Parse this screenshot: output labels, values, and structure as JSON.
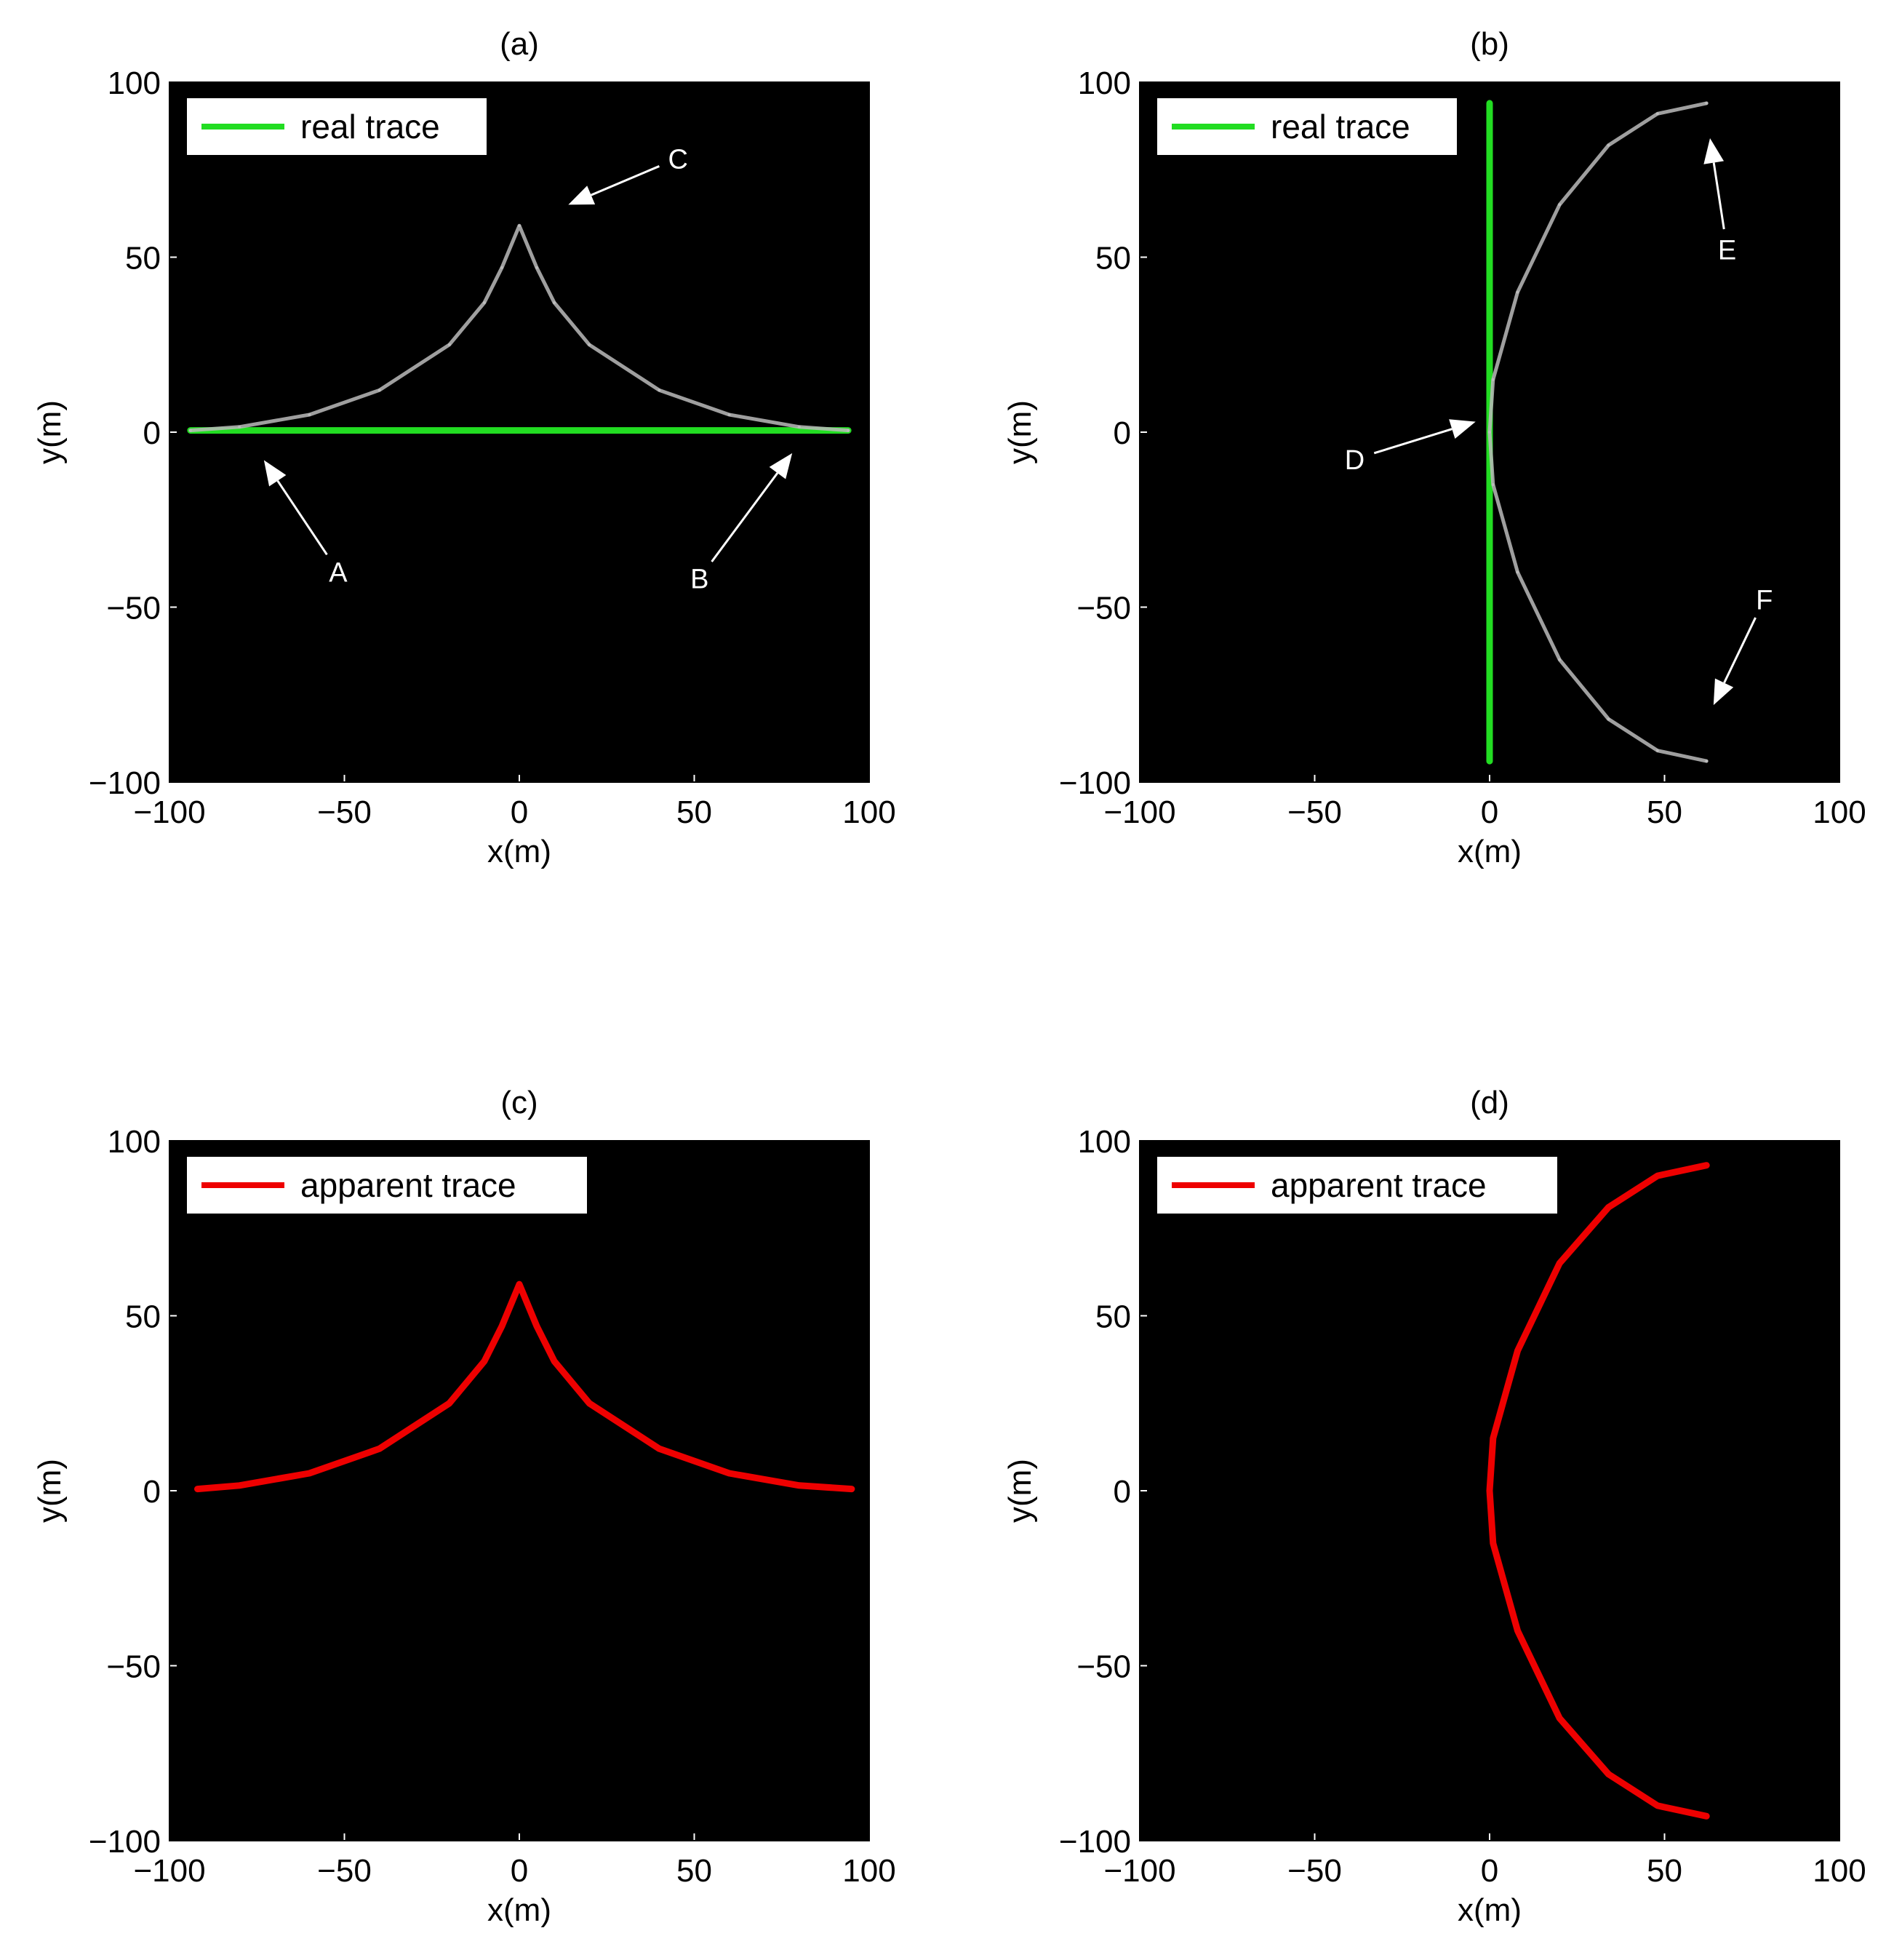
{
  "figure": {
    "panels": [
      {
        "id": "a",
        "title": "(a)",
        "xlabel": "x(m)",
        "ylabel": "y(m)",
        "xlim": [
          -100,
          100
        ],
        "ylim": [
          -100,
          100
        ],
        "xticks": [
          "−100",
          "−50",
          "0",
          "50",
          "100"
        ],
        "yticks": [
          "100",
          "50",
          "0",
          "−50",
          "−100"
        ],
        "background": "#000000",
        "legend": {
          "label": "real trace",
          "color": "#22dd22",
          "placement": "top-left"
        },
        "annotations": [
          {
            "label": "A",
            "from": [
              -55,
              -35
            ],
            "to": [
              -73,
              -8
            ]
          },
          {
            "label": "B",
            "from": [
              55,
              -37
            ],
            "to": [
              78,
              -6
            ]
          },
          {
            "label": "C",
            "from": [
              40,
              76
            ],
            "to": [
              14,
              65
            ]
          }
        ]
      },
      {
        "id": "b",
        "title": "(b)",
        "xlabel": "x(m)",
        "ylabel": "y(m)",
        "xlim": [
          -100,
          100
        ],
        "ylim": [
          -100,
          100
        ],
        "xticks": [
          "−100",
          "−50",
          "0",
          "50",
          "100"
        ],
        "yticks": [
          "100",
          "50",
          "0",
          "−50",
          "−100"
        ],
        "background": "#000000",
        "legend": {
          "label": "real trace",
          "color": "#22dd22",
          "placement": "top-left"
        },
        "annotations": [
          {
            "label": "D",
            "from": [
              -33,
              -6
            ],
            "to": [
              -4,
              3
            ]
          },
          {
            "label": "E",
            "from": [
              67,
              58
            ],
            "to": [
              63,
              84
            ]
          },
          {
            "label": "F",
            "from": [
              76,
              -53
            ],
            "to": [
              64,
              -78
            ]
          }
        ]
      },
      {
        "id": "c",
        "title": "(c)",
        "xlabel": "x(m)",
        "ylabel": "y(m)",
        "xlim": [
          -100,
          100
        ],
        "ylim": [
          -100,
          100
        ],
        "xticks": [
          "−100",
          "−50",
          "0",
          "50",
          "100"
        ],
        "yticks": [
          "100",
          "50",
          "0",
          "−50",
          "−100"
        ],
        "background": "#000000",
        "legend": {
          "label": "apparent trace",
          "color": "#ee0000",
          "placement": "top-left"
        },
        "annotations": []
      },
      {
        "id": "d",
        "title": "(d)",
        "xlabel": "x(m)",
        "ylabel": "y(m)",
        "xlim": [
          -100,
          100
        ],
        "ylim": [
          -100,
          100
        ],
        "xticks": [
          "−100",
          "−50",
          "0",
          "50",
          "100"
        ],
        "yticks": [
          "100",
          "50",
          "0",
          "−50",
          "−100"
        ],
        "background": "#000000",
        "legend": {
          "label": "apparent trace",
          "color": "#ee0000",
          "placement": "top-left"
        },
        "annotations": []
      }
    ]
  },
  "chart_data": [
    {
      "type": "line",
      "title": "(a)",
      "xlabel": "x(m)",
      "ylabel": "y(m)",
      "xlim": [
        -100,
        100
      ],
      "ylim": [
        -100,
        100
      ],
      "grid": false,
      "series": [
        {
          "name": "real trace",
          "color": "#22dd22",
          "x": [
            -94,
            94
          ],
          "y": [
            0.5,
            0.5
          ]
        },
        {
          "color": "#bbbbbb",
          "x": [
            -94,
            -80,
            -60,
            -40,
            -20,
            -10,
            -5,
            0,
            5,
            10,
            20,
            40,
            60,
            80,
            94
          ],
          "y": [
            0.5,
            1.5,
            5,
            12,
            25,
            37,
            47,
            59,
            47,
            37,
            25,
            12,
            5,
            1.5,
            0.5
          ]
        }
      ]
    },
    {
      "type": "line",
      "title": "(b)",
      "xlabel": "x(m)",
      "ylabel": "y(m)",
      "xlim": [
        -100,
        100
      ],
      "ylim": [
        -100,
        100
      ],
      "grid": false,
      "series": [
        {
          "name": "real trace",
          "color": "#22dd22",
          "x": [
            0,
            0
          ],
          "y": [
            94,
            -94
          ]
        },
        {
          "color": "#bbbbbb",
          "x": [
            62,
            48,
            34,
            20,
            8,
            1,
            0,
            1,
            8,
            20,
            34,
            48,
            62
          ],
          "y": [
            94,
            91,
            82,
            65,
            40,
            15,
            0,
            -15,
            -40,
            -65,
            -82,
            -91,
            -94
          ]
        }
      ]
    },
    {
      "type": "line",
      "title": "(c)",
      "xlabel": "x(m)",
      "ylabel": "y(m)",
      "xlim": [
        -100,
        100
      ],
      "ylim": [
        -100,
        100
      ],
      "grid": false,
      "series": [
        {
          "name": "apparent trace",
          "color": "#ee0000",
          "x": [
            -92,
            -80,
            -60,
            -40,
            -20,
            -10,
            -5,
            0,
            5,
            10,
            20,
            40,
            60,
            80,
            95
          ],
          "y": [
            0.5,
            1.5,
            5,
            12,
            25,
            37,
            47,
            59,
            47,
            37,
            25,
            12,
            5,
            1.5,
            0.5
          ]
        }
      ]
    },
    {
      "type": "line",
      "title": "(d)",
      "xlabel": "x(m)",
      "ylabel": "y(m)",
      "xlim": [
        -100,
        100
      ],
      "ylim": [
        -100,
        100
      ],
      "grid": false,
      "series": [
        {
          "name": "apparent trace",
          "color": "#ee0000",
          "x": [
            62,
            48,
            34,
            20,
            8,
            1,
            0,
            1,
            8,
            20,
            34,
            48,
            62
          ],
          "y": [
            93,
            90,
            81,
            65,
            40,
            15,
            0,
            -15,
            -40,
            -65,
            -81,
            -90,
            -93
          ]
        }
      ]
    }
  ]
}
